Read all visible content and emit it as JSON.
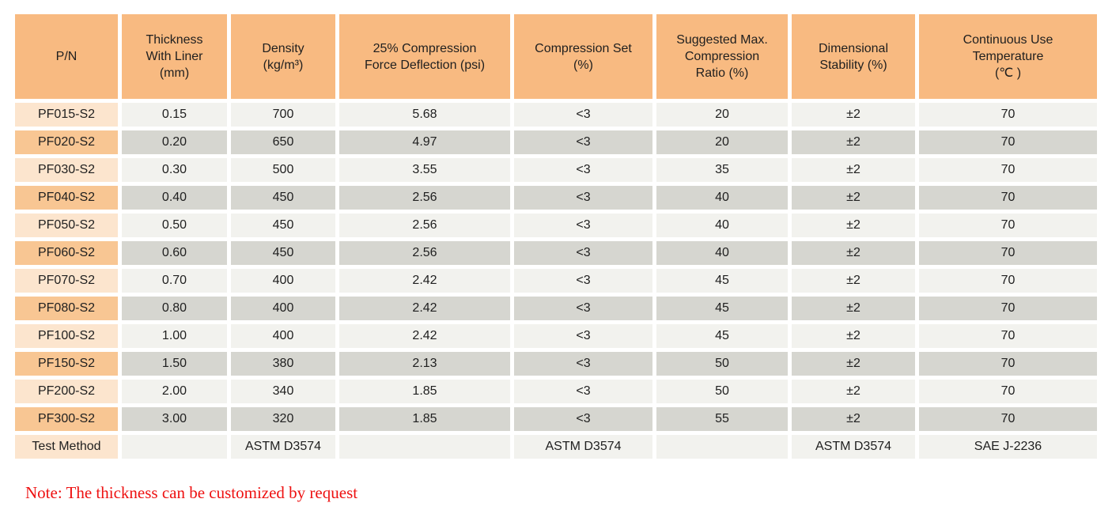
{
  "colors": {
    "header_bg": "#F8BA81",
    "pn_light": "#FCE5CE",
    "pn_dark": "#F8C693",
    "row_light": "#F2F2EE",
    "row_dark": "#D6D6D0",
    "text": "#1F1F1F",
    "note_red": "#EE1111"
  },
  "table": {
    "headers": [
      "P/N",
      "Thickness\nWith Liner\n(mm)",
      "Density\n(kg/m³)",
      "25% Compression\nForce Deflection (psi)",
      "Compression Set\n(%)",
      "Suggested Max.\nCompression\nRatio (%)",
      "Dimensional\nStability (%)",
      "Continuous Use\nTemperature\n(℃ )"
    ],
    "rows": [
      [
        "PF015-S2",
        "0.15",
        "700",
        "5.68",
        "<3",
        "20",
        "±2",
        "70"
      ],
      [
        "PF020-S2",
        "0.20",
        "650",
        "4.97",
        "<3",
        "20",
        "±2",
        "70"
      ],
      [
        "PF030-S2",
        "0.30",
        "500",
        "3.55",
        "<3",
        "35",
        "±2",
        "70"
      ],
      [
        "PF040-S2",
        "0.40",
        "450",
        "2.56",
        "<3",
        "40",
        "±2",
        "70"
      ],
      [
        "PF050-S2",
        "0.50",
        "450",
        "2.56",
        "<3",
        "40",
        "±2",
        "70"
      ],
      [
        "PF060-S2",
        "0.60",
        "450",
        "2.56",
        "<3",
        "40",
        "±2",
        "70"
      ],
      [
        "PF070-S2",
        "0.70",
        "400",
        "2.42",
        "<3",
        "45",
        "±2",
        "70"
      ],
      [
        "PF080-S2",
        "0.80",
        "400",
        "2.42",
        "<3",
        "45",
        "±2",
        "70"
      ],
      [
        "PF100-S2",
        "1.00",
        "400",
        "2.42",
        "<3",
        "45",
        "±2",
        "70"
      ],
      [
        "PF150-S2",
        "1.50",
        "380",
        "2.13",
        "<3",
        "50",
        "±2",
        "70"
      ],
      [
        "PF200-S2",
        "2.00",
        "340",
        "1.85",
        "<3",
        "50",
        "±2",
        "70"
      ],
      [
        "PF300-S2",
        "3.00",
        "320",
        "1.85",
        "<3",
        "55",
        "±2",
        "70"
      ],
      [
        "Test Method",
        "",
        "ASTM D3574",
        "",
        "ASTM D3574",
        "",
        "ASTM D3574",
        "SAE J-2236"
      ]
    ]
  },
  "note": "Note: The thickness can be customized by request"
}
